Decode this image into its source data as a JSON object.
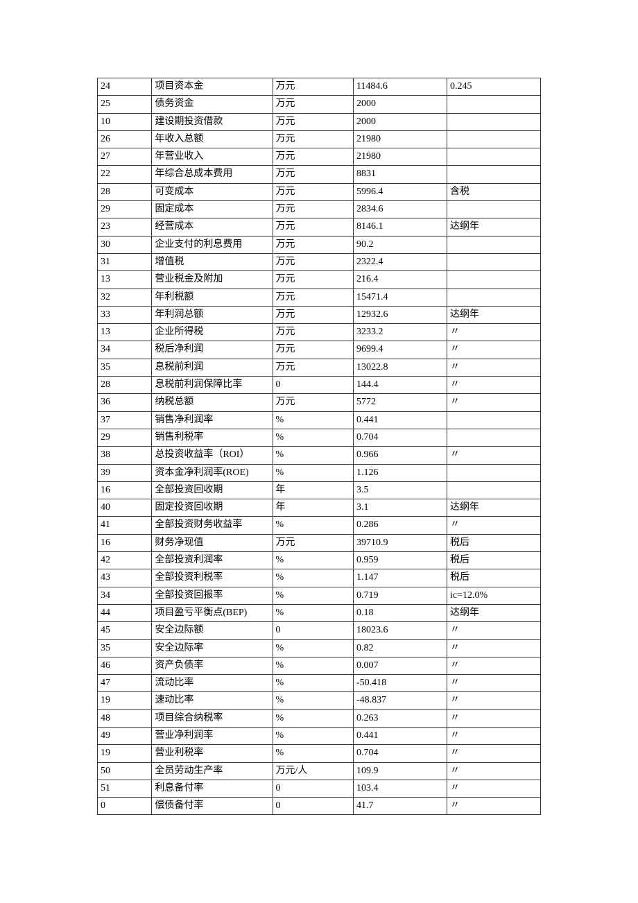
{
  "table": {
    "rows": [
      [
        "24",
        "项目资本金",
        "万元",
        "11484.6",
        "0.245"
      ],
      [
        "25",
        "债务资金",
        "万元",
        "2000",
        ""
      ],
      [
        "10",
        "建设期投资借款",
        "万元",
        "2000",
        ""
      ],
      [
        "26",
        "年收入总额",
        "万元",
        "21980",
        ""
      ],
      [
        "27",
        "年营业收入",
        "万元",
        "21980",
        ""
      ],
      [
        "22",
        "年综合总成本费用",
        "万元",
        "8831",
        ""
      ],
      [
        "28",
        "可变成本",
        "万元",
        "5996.4",
        "含税"
      ],
      [
        "29",
        "固定成本",
        "万元",
        "2834.6",
        ""
      ],
      [
        "23",
        "经营成本",
        "万元",
        "8146.1",
        "达纲年"
      ],
      [
        "30",
        "企业支付的利息费用",
        "万元",
        "90.2",
        ""
      ],
      [
        "31",
        "增值税",
        "万元",
        "2322.4",
        ""
      ],
      [
        "13",
        "营业税金及附加",
        "万元",
        "216.4",
        ""
      ],
      [
        "32",
        "年利税额",
        "万元",
        "15471.4",
        ""
      ],
      [
        "33",
        "年利润总额",
        "万元",
        "12932.6",
        "达纲年"
      ],
      [
        "13",
        "企业所得税",
        "万元",
        "3233.2",
        "〃"
      ],
      [
        "34",
        "税后净利润",
        "万元",
        "9699.4",
        "〃"
      ],
      [
        "35",
        "息税前利润",
        "万元",
        "13022.8",
        "〃"
      ],
      [
        "28",
        "息税前利润保障比率",
        "0",
        "144.4",
        "〃"
      ],
      [
        "36",
        "纳税总额",
        "万元",
        "5772",
        "〃"
      ],
      [
        "37",
        "销售净利润率",
        "%",
        "0.441",
        ""
      ],
      [
        "29",
        "销售利税率",
        "%",
        "0.704",
        ""
      ],
      [
        "38",
        "总投资收益率（ROI）",
        "%",
        "0.966",
        "〃"
      ],
      [
        "39",
        "资本金净利润率(ROE)",
        "%",
        "1.126",
        ""
      ],
      [
        "16",
        "全部投资回收期",
        "年",
        "3.5",
        ""
      ],
      [
        "40",
        "固定投资回收期",
        "年",
        "3.1",
        "达纲年"
      ],
      [
        "41",
        "全部投资财务收益率",
        "%",
        "0.286",
        "〃"
      ],
      [
        "16",
        "财务净现值",
        "万元",
        "39710.9",
        "税后"
      ],
      [
        "42",
        "全部投资利润率",
        "%",
        "0.959",
        "税后"
      ],
      [
        "43",
        "全部投资利税率",
        "%",
        "1.147",
        "税后"
      ],
      [
        "34",
        "全部投资回报率",
        "%",
        "0.719",
        "ic=12.0%"
      ],
      [
        "44",
        "项目盈亏平衡点(BEP)",
        "%",
        "0.18",
        "达纲年"
      ],
      [
        "45",
        "安全边际额",
        "0",
        "18023.6",
        "〃"
      ],
      [
        "35",
        "安全边际率",
        "%",
        "0.82",
        "〃"
      ],
      [
        "46",
        "资产负债率",
        "%",
        "0.007",
        "〃"
      ],
      [
        "47",
        "流动比率",
        "%",
        "-50.418",
        "〃"
      ],
      [
        "19",
        "速动比率",
        "%",
        "-48.837",
        "〃"
      ],
      [
        "48",
        "项目综合纳税率",
        "%",
        "0.263",
        "〃"
      ],
      [
        "49",
        "营业净利润率",
        "%",
        "0.441",
        "〃"
      ],
      [
        "19",
        "营业利税率",
        "%",
        "0.704",
        "〃"
      ],
      [
        "50",
        "全员劳动生产率",
        "万元/人",
        "109.9",
        "〃"
      ],
      [
        "51",
        "利息备付率",
        "0",
        "103.4",
        "〃"
      ],
      [
        "0",
        "偿债备付率",
        "0",
        "41.7",
        "〃"
      ]
    ]
  }
}
